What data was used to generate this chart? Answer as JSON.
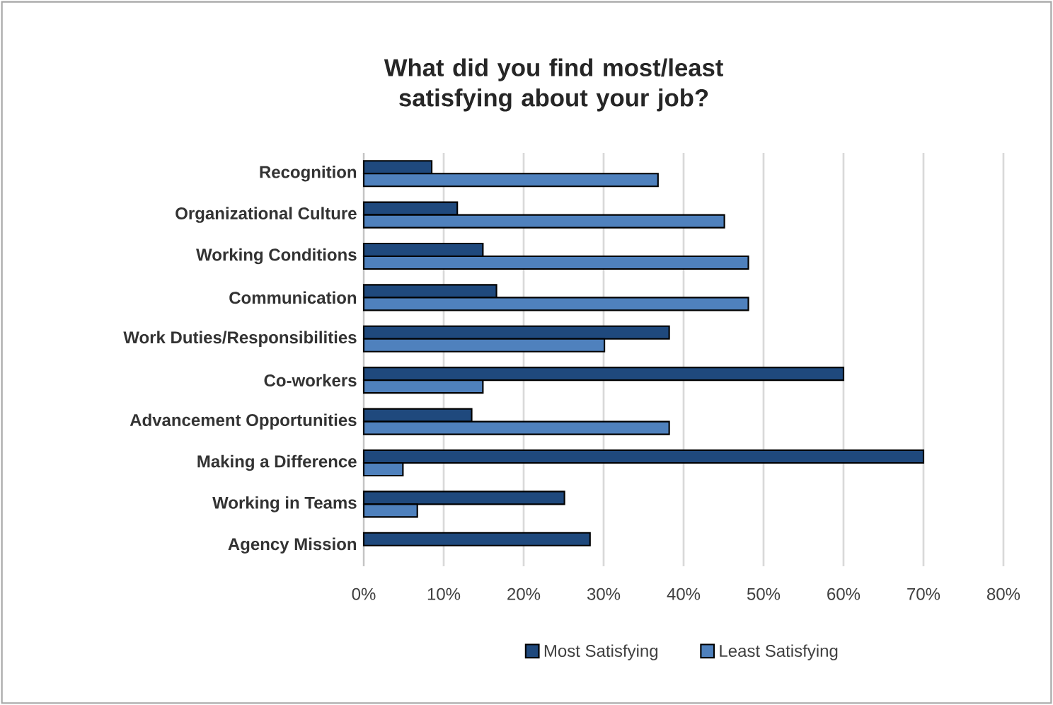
{
  "chart_data": {
    "type": "bar",
    "orientation": "horizontal",
    "title": "What did you find most/least satisfying about your job?",
    "categories": [
      "Recognition",
      "Organizational Culture",
      "Working Conditions",
      "Communication",
      "Work Duties/Responsibilities",
      "Co-workers",
      "Advancement Opportunities",
      "Making a Difference",
      "Working in Teams",
      "Agency Mission"
    ],
    "series": [
      {
        "name": "Most Satisfying",
        "color": "#1f497d",
        "values": [
          8.5,
          11.7,
          14.9,
          16.6,
          38.2,
          60,
          13.5,
          70,
          25.1,
          28.3
        ]
      },
      {
        "name": "Least Satisfying",
        "color": "#4f81bd",
        "values": [
          36.8,
          45.1,
          48.1,
          48.1,
          30.1,
          14.9,
          38.2,
          4.9,
          6.7,
          null
        ]
      }
    ],
    "xlim": [
      0,
      80
    ],
    "xticks": [
      {
        "value": 0,
        "label": "0%"
      },
      {
        "value": 10,
        "label": "10%"
      },
      {
        "value": 20,
        "label": "20%"
      },
      {
        "value": 30,
        "label": "30%"
      },
      {
        "value": 40,
        "label": "40%"
      },
      {
        "value": 50,
        "label": "50%"
      },
      {
        "value": 60,
        "label": "60%"
      },
      {
        "value": 70,
        "label": "70%"
      },
      {
        "value": 80,
        "label": "80%"
      }
    ],
    "grid": "x",
    "legend": "bottom"
  }
}
